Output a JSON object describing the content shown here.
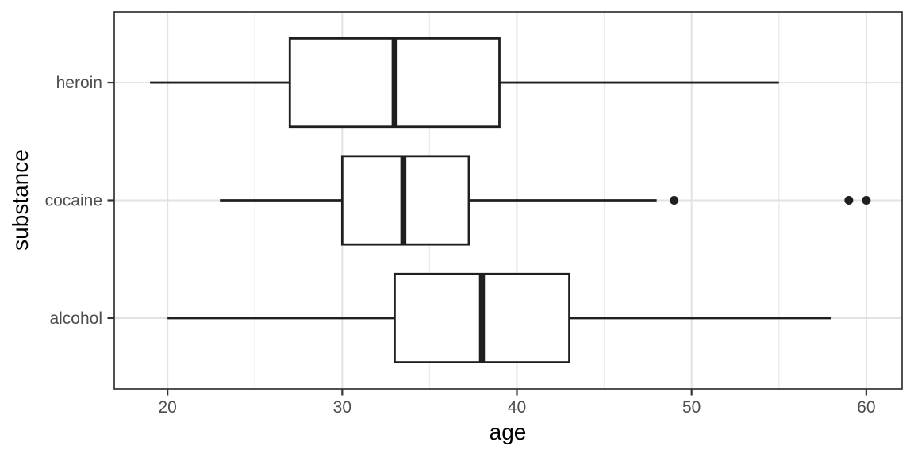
{
  "figure": {
    "background_color": "#ffffff"
  },
  "chart_data": {
    "type": "boxplot",
    "orientation": "horizontal",
    "title": "",
    "xlabel": "age",
    "ylabel": "substance",
    "categories_top_to_bottom": [
      "heroin",
      "cocaine",
      "alcohol"
    ],
    "series": [
      {
        "category": "heroin",
        "whisker_low": 19,
        "q1": 27,
        "median": 33,
        "q3": 39,
        "whisker_high": 55,
        "outliers": []
      },
      {
        "category": "cocaine",
        "whisker_low": 23,
        "q1": 30,
        "median": 33.5,
        "q3": 37.25,
        "whisker_high": 48,
        "outliers": [
          49,
          59,
          60
        ]
      },
      {
        "category": "alcohol",
        "whisker_low": 20,
        "q1": 33,
        "median": 38,
        "q3": 43,
        "whisker_high": 58,
        "outliers": []
      }
    ],
    "x_ticks": [
      20,
      30,
      40,
      50,
      60
    ],
    "x_minor_gridlines": [
      25,
      35,
      45,
      55
    ],
    "xlim": [
      16.95,
      62.05
    ],
    "grid": "on",
    "legend": "none",
    "style": {
      "box_fill": "#ffffff",
      "stroke_color": "#1f1f1f",
      "outlier_color": "#1f1f1f",
      "panel_border_color": "#333333",
      "grid_major_color": "#e2e2e2",
      "grid_minor_color": "#ececec",
      "tick_mark_color": "#333333",
      "tick_label_color": "#4d4d4d",
      "axis_title_color": "#000000"
    }
  }
}
